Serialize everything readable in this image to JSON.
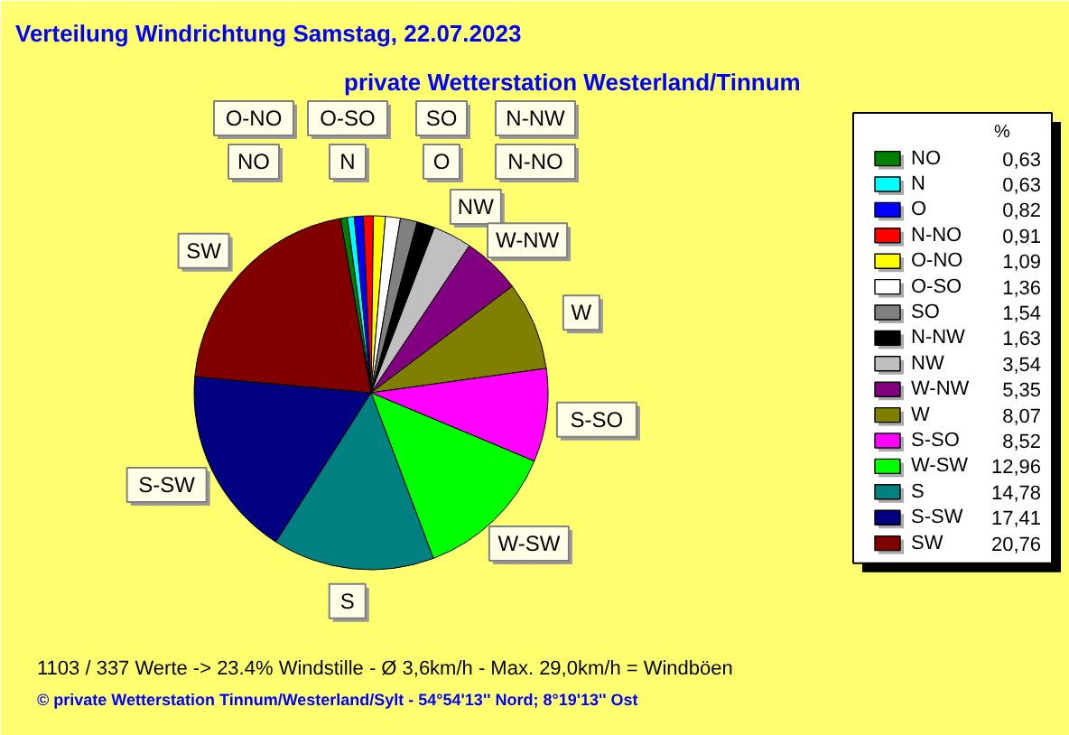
{
  "chart_data": {
    "type": "pie",
    "title": "Verteilung Windrichtung   Samstag, 22.07.2023",
    "subtitle": "private Wetterstation Westerland/Tinnum",
    "legend_title": "%",
    "legend": "right",
    "categories": [
      "NO",
      "N",
      "O",
      "N-NO",
      "O-NO",
      "O-SO",
      "SO",
      "N-NW",
      "NW",
      "W-NW",
      "W",
      "S-SO",
      "W-SW",
      "S",
      "S-SW",
      "SW"
    ],
    "values": [
      0.63,
      0.63,
      0.82,
      0.91,
      1.09,
      1.36,
      1.54,
      1.63,
      3.54,
      5.35,
      8.07,
      8.52,
      12.96,
      14.78,
      17.41,
      20.76
    ],
    "value_labels": [
      "0,63",
      "0,63",
      "0,82",
      "0,91",
      "1,09",
      "1,36",
      "1,54",
      "1,63",
      "3,54",
      "5,35",
      "8,07",
      "8,52",
      "12,96",
      "14,78",
      "17,41",
      "20,76"
    ],
    "colors": [
      "#008000",
      "#00ffff",
      "#0000ff",
      "#ff0000",
      "#ffff00",
      "#ffffff",
      "#808080",
      "#000000",
      "#c0c0c0",
      "#800080",
      "#808000",
      "#ff00ff",
      "#00ff00",
      "#008080",
      "#000080",
      "#800000"
    ],
    "annotations": [
      "1103 / 337 Werte  -> 23.4% Windstille   -   Ø 3,6km/h  -  Max. 29,0km/h = Windböen",
      "© private Wetterstation Tinnum/Westerland/Sylt  -  54°54'13'' Nord; 8°19'13'' Ost"
    ]
  }
}
